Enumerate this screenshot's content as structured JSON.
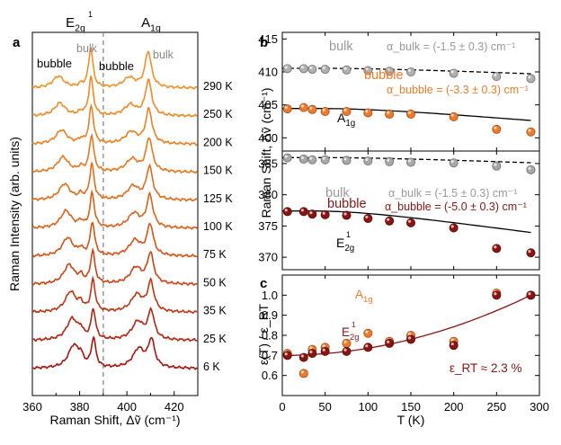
{
  "chart_data": [
    {
      "panel": "a",
      "type": "line",
      "xlabel": "Raman Shift, Δṽ (cm⁻¹)",
      "ylabel": "Raman Intensity (arb. units)",
      "xlim": [
        360,
        430
      ],
      "xticks": [
        360,
        380,
        400,
        420
      ],
      "peak_labels": {
        "e2g": "E",
        "a1g": "A"
      },
      "annotations": [
        "bulk",
        "bubble",
        "bubble",
        "bulk"
      ],
      "series": [
        {
          "name": "290 K",
          "color": "#f0922a"
        },
        {
          "name": "250 K",
          "color": "#ef8a26"
        },
        {
          "name": "200 K",
          "color": "#ec8022"
        },
        {
          "name": "150 K",
          "color": "#e9771e"
        },
        {
          "name": "125 K",
          "color": "#e46c1b"
        },
        {
          "name": "100 K",
          "color": "#de6018"
        },
        {
          "name": "75 K",
          "color": "#d65215"
        },
        {
          "name": "50 K",
          "color": "#cc4413"
        },
        {
          "name": "35 K",
          "color": "#c03511"
        },
        {
          "name": "25 K",
          "color": "#b3250f"
        },
        {
          "name": "6 K",
          "color": "#a8150e"
        }
      ]
    },
    {
      "panel": "b",
      "type": "scatter",
      "subpanel": "A1g",
      "ylabel": "Raman Shift, Δṽ (cm⁻¹)",
      "xlim": [
        0,
        300
      ],
      "ylim": [
        398,
        416
      ],
      "yticks": [
        400,
        405,
        410,
        415
      ],
      "mode_label": "A",
      "series": [
        {
          "name": "bulk",
          "color": "#b0b0b0",
          "x": [
            6,
            25,
            35,
            50,
            75,
            100,
            125,
            150,
            200,
            250,
            290
          ],
          "y": [
            410.5,
            410.5,
            410.4,
            410.4,
            410.3,
            410.2,
            410.1,
            410.0,
            409.8,
            409.3,
            409.0
          ],
          "annotation": "α_bulk = (-1.5 ± 0.3) cm⁻¹"
        },
        {
          "name": "bubble",
          "color": "#f07a28",
          "x": [
            6,
            25,
            35,
            50,
            75,
            100,
            125,
            150,
            200,
            250,
            290
          ],
          "y": [
            404.4,
            404.6,
            404.3,
            404.0,
            404.0,
            403.8,
            403.6,
            403.6,
            403.2,
            401.3,
            400.9
          ],
          "annotation": "α_bubble = (-3.3 ± 0.3) cm⁻¹"
        }
      ]
    },
    {
      "panel": "b",
      "type": "scatter",
      "subpanel": "E2g",
      "xlim": [
        0,
        300
      ],
      "ylim": [
        368,
        387
      ],
      "yticks": [
        370,
        375,
        380,
        385
      ],
      "mode_label": "E",
      "series": [
        {
          "name": "bulk",
          "color": "#a8a8a8",
          "x": [
            6,
            25,
            35,
            50,
            75,
            100,
            125,
            150,
            200,
            250,
            290
          ],
          "y": [
            385.9,
            385.7,
            385.6,
            385.6,
            385.5,
            385.4,
            385.3,
            385.2,
            385.1,
            384.6,
            384.0
          ],
          "annotation": "α_bulk = (-1.5 ± 0.3) cm⁻¹"
        },
        {
          "name": "bubble",
          "color": "#8a1412",
          "x": [
            6,
            25,
            35,
            50,
            75,
            100,
            125,
            150,
            200,
            250,
            290
          ],
          "y": [
            377.3,
            377.3,
            376.9,
            376.8,
            376.7,
            376.2,
            375.8,
            375.5,
            374.7,
            371.4,
            370.7
          ],
          "annotation": "α_bubble = (-5.0 ± 0.3) cm⁻¹"
        }
      ]
    },
    {
      "panel": "c",
      "type": "scatter",
      "xlabel": "T (K)",
      "ylabel": "ε(T) / ε_RT",
      "xlim": [
        0,
        300
      ],
      "ylim": [
        0.5,
        1.1
      ],
      "xticks": [
        0,
        50,
        100,
        150,
        200,
        250,
        300
      ],
      "yticks": [
        0.6,
        0.7,
        0.8,
        0.9,
        1.0
      ],
      "annotation": "ε_RT ≈ 2.3 %",
      "series": [
        {
          "name": "A1g",
          "color": "#f07a28",
          "x": [
            6,
            25,
            35,
            50,
            75,
            100,
            125,
            150,
            200,
            250,
            290
          ],
          "y": [
            0.71,
            0.61,
            0.73,
            0.74,
            0.76,
            0.81,
            0.77,
            0.8,
            0.77,
            1.01,
            1.0
          ]
        },
        {
          "name": "E2g",
          "color": "#8a1412",
          "x": [
            6,
            25,
            35,
            50,
            75,
            100,
            125,
            150,
            200,
            250,
            290
          ],
          "y": [
            0.7,
            0.69,
            0.71,
            0.72,
            0.72,
            0.74,
            0.76,
            0.78,
            0.75,
            1.0,
            1.0
          ]
        }
      ]
    }
  ],
  "panel_labels": {
    "a": "a",
    "b": "b",
    "c": "c"
  },
  "a_ylabel_text": "Raman Intensity (arb. units)",
  "b_ylabel_text": "Raman Shift, Δṽ (cm⁻¹)",
  "c_ylabel_text": "ε(T) / ε_RT",
  "a_xlabel_text": "Raman Shift, Δṽ (cm⁻¹)",
  "c_xlabel_text": "T (K)"
}
